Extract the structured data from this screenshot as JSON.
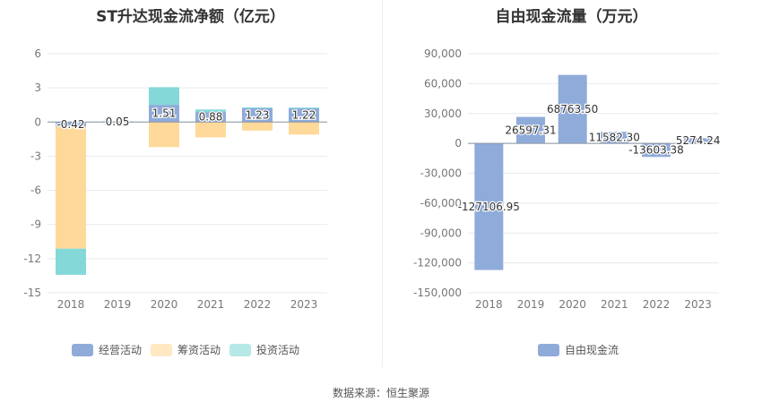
{
  "source_text": "数据来源：恒生聚源",
  "chart_data": [
    {
      "type": "bar",
      "stacked": true,
      "title": "ST升达现金流净额（亿元）",
      "categories": [
        "2018",
        "2019",
        "2020",
        "2021",
        "2022",
        "2023"
      ],
      "ylim": [
        -15,
        6
      ],
      "yticks": [
        6,
        3,
        0,
        -3,
        -6,
        -9,
        -12,
        -15
      ],
      "ytick_labels": [
        "6",
        "3",
        "0",
        "-3",
        "-6",
        "-9",
        "-12",
        "-15"
      ],
      "series": [
        {
          "name": "经营活动",
          "color": "#8fabd9",
          "values": [
            -0.42,
            0.05,
            1.51,
            0.88,
            1.23,
            1.22
          ],
          "labels": [
            "-0.42",
            "0.05",
            "1.51",
            "0.88",
            "1.23",
            "1.22"
          ]
        },
        {
          "name": "筹资活动",
          "color": "#ffd99a",
          "values": [
            -10.7,
            0.0,
            -2.2,
            -1.35,
            -0.75,
            -1.1
          ]
        },
        {
          "name": "投资活动",
          "color": "#85d8d8",
          "values": [
            -2.3,
            0.0,
            1.55,
            0.22,
            0.05,
            0.05
          ]
        }
      ]
    },
    {
      "type": "bar",
      "title": "自由现金流量（万元）",
      "categories": [
        "2018",
        "2019",
        "2020",
        "2021",
        "2022",
        "2023"
      ],
      "ylim": [
        -150000,
        90000
      ],
      "yticks": [
        90000,
        60000,
        30000,
        0,
        -30000,
        -60000,
        -90000,
        -120000,
        -150000
      ],
      "ytick_labels": [
        "90,000",
        "60,000",
        "30,000",
        "0",
        "-30,000",
        "-60,000",
        "-90,000",
        "-120,000",
        "-150,000"
      ],
      "series": [
        {
          "name": "自由现金流",
          "color": "#8fabd9",
          "values": [
            -127106.95,
            26597.31,
            68763.5,
            11582.3,
            -13603.38,
            5274.24
          ],
          "labels": [
            "-127106.95",
            "26597.31",
            "68763.50",
            "11582.30",
            "-13603.38",
            "5274.24"
          ]
        }
      ]
    }
  ]
}
